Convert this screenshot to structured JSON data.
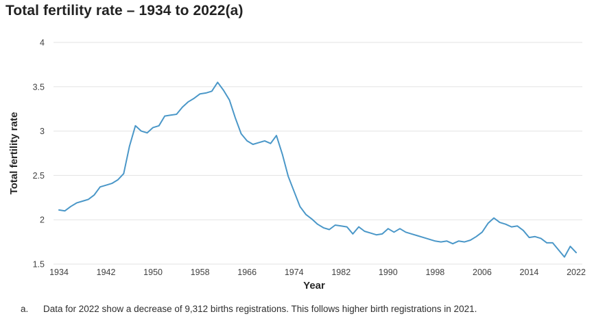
{
  "page": {
    "title": "Total fertility rate – 1934 to 2022(a)",
    "footnote": {
      "marker": "a.",
      "text": "Data for 2022 show a decrease of 9,312 births registrations. This follows higher birth registrations in 2021."
    }
  },
  "colors": {
    "line": "#4a97c8",
    "gridline": "#e3e3e3",
    "tick_text": "#404040",
    "title_text": "#222222"
  },
  "chart_data": {
    "type": "line",
    "title": "Total fertility rate – 1934 to 2022(a)",
    "xlabel": "Year",
    "ylabel": "Total fertility rate",
    "xlim": [
      1934,
      2022
    ],
    "ylim": [
      1.5,
      4
    ],
    "grid": "horizontal-only",
    "legend": "none",
    "x_ticks": [
      1934,
      1942,
      1950,
      1958,
      1966,
      1974,
      1982,
      1990,
      1998,
      2006,
      2014,
      2022
    ],
    "y_ticks": [
      4,
      3.5,
      3,
      2.5,
      2,
      1.5
    ],
    "y_tick_labels": [
      "4",
      "3.5",
      "3",
      "2.5",
      "2",
      "1.5"
    ],
    "years": [
      1934,
      1935,
      1936,
      1937,
      1938,
      1939,
      1940,
      1941,
      1942,
      1943,
      1944,
      1945,
      1946,
      1947,
      1948,
      1949,
      1950,
      1951,
      1952,
      1953,
      1954,
      1955,
      1956,
      1957,
      1958,
      1959,
      1960,
      1961,
      1962,
      1963,
      1964,
      1965,
      1966,
      1967,
      1968,
      1969,
      1970,
      1971,
      1972,
      1973,
      1974,
      1975,
      1976,
      1977,
      1978,
      1979,
      1980,
      1981,
      1982,
      1983,
      1984,
      1985,
      1986,
      1987,
      1988,
      1989,
      1990,
      1991,
      1992,
      1993,
      1994,
      1995,
      1996,
      1997,
      1998,
      1999,
      2000,
      2001,
      2002,
      2003,
      2004,
      2005,
      2006,
      2007,
      2008,
      2009,
      2010,
      2011,
      2012,
      2013,
      2014,
      2015,
      2016,
      2017,
      2018,
      2019,
      2020,
      2021,
      2022
    ],
    "series": [
      {
        "name": "Total fertility rate",
        "color": "#4a97c8",
        "values": [
          2.11,
          2.1,
          2.15,
          2.19,
          2.21,
          2.23,
          2.28,
          2.37,
          2.39,
          2.41,
          2.45,
          2.52,
          2.83,
          3.06,
          3.0,
          2.98,
          3.04,
          3.06,
          3.17,
          3.18,
          3.19,
          3.27,
          3.33,
          3.37,
          3.42,
          3.43,
          3.45,
          3.55,
          3.46,
          3.35,
          3.15,
          2.97,
          2.89,
          2.85,
          2.87,
          2.89,
          2.86,
          2.95,
          2.74,
          2.49,
          2.32,
          2.15,
          2.06,
          2.01,
          1.95,
          1.91,
          1.89,
          1.94,
          1.93,
          1.92,
          1.84,
          1.92,
          1.87,
          1.85,
          1.83,
          1.84,
          1.9,
          1.86,
          1.9,
          1.86,
          1.84,
          1.82,
          1.8,
          1.78,
          1.76,
          1.75,
          1.76,
          1.73,
          1.76,
          1.75,
          1.77,
          1.81,
          1.86,
          1.96,
          2.02,
          1.97,
          1.95,
          1.92,
          1.93,
          1.88,
          1.8,
          1.81,
          1.79,
          1.74,
          1.74,
          1.66,
          1.58,
          1.7,
          1.63
        ]
      }
    ]
  }
}
